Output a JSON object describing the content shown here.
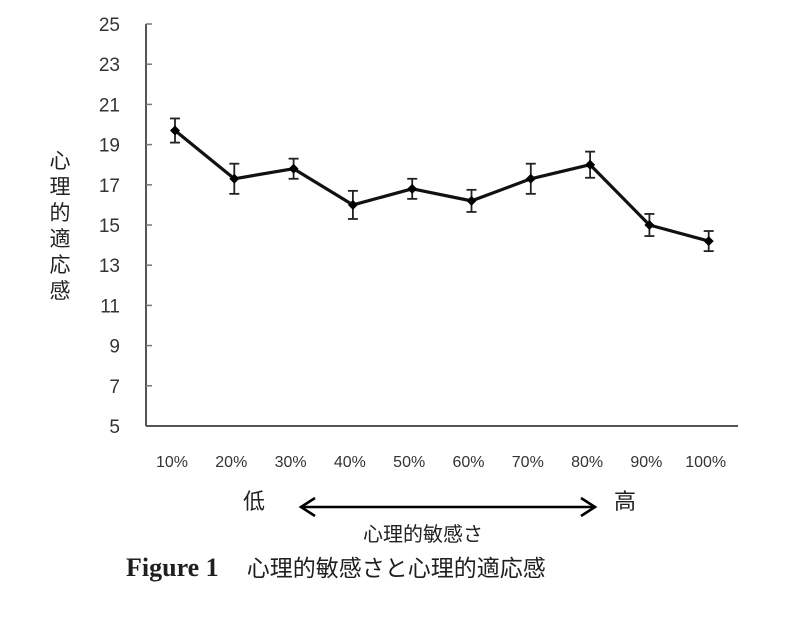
{
  "chart_data": {
    "type": "line",
    "title": "",
    "xlabel": "心理的敏感さ",
    "ylabel": "心理的適応感",
    "categories": [
      "10%",
      "20%",
      "30%",
      "40%",
      "50%",
      "60%",
      "70%",
      "80%",
      "90%",
      "100%"
    ],
    "series": [
      {
        "name": "心理的適応感",
        "values": [
          19.7,
          17.3,
          17.8,
          16.0,
          16.8,
          16.2,
          17.3,
          18.0,
          15.0,
          14.2
        ],
        "error": [
          0.6,
          0.75,
          0.5,
          0.7,
          0.5,
          0.55,
          0.75,
          0.65,
          0.55,
          0.5
        ],
        "color": "#111111",
        "marker": "diamond"
      }
    ],
    "ylim": [
      5,
      25
    ],
    "yticks": [
      5,
      7,
      9,
      11,
      13,
      15,
      17,
      19,
      21,
      23,
      25
    ],
    "grid": false,
    "legend": "none",
    "axis_annotation": {
      "low": "低",
      "high": "高",
      "arrow": "double-headed"
    }
  },
  "labels": {
    "ylabel_chars": [
      "心",
      "理",
      "的",
      "適",
      "応",
      "感"
    ],
    "low": "低",
    "high": "高",
    "xlabel": "心理的敏感さ"
  },
  "caption": {
    "number": "Figure 1",
    "title": "心理的敏感さと心理的適応感"
  }
}
